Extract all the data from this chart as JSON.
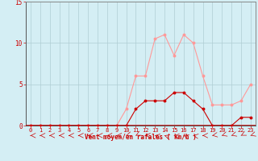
{
  "x": [
    0,
    1,
    2,
    3,
    4,
    5,
    6,
    7,
    8,
    9,
    10,
    11,
    12,
    13,
    14,
    15,
    16,
    17,
    18,
    19,
    20,
    21,
    22,
    23
  ],
  "y_moyen": [
    0,
    0,
    0,
    0,
    0,
    0,
    0,
    0,
    0,
    0,
    0,
    2,
    3,
    3,
    3,
    4,
    4,
    3,
    2,
    0,
    0,
    0,
    1,
    1
  ],
  "y_rafales": [
    0,
    0,
    0,
    0,
    0,
    0,
    0,
    0,
    0,
    0,
    2,
    6,
    6,
    10.5,
    11,
    8.5,
    11,
    10,
    6,
    2.5,
    2.5,
    2.5,
    3,
    5
  ],
  "xlabel": "Vent moyen/en rafales ( km/h )",
  "ylim": [
    0,
    15
  ],
  "xlim": [
    -0.5,
    23.5
  ],
  "yticks": [
    0,
    5,
    10,
    15
  ],
  "xticks": [
    0,
    1,
    2,
    3,
    4,
    5,
    6,
    7,
    8,
    9,
    10,
    11,
    12,
    13,
    14,
    15,
    16,
    17,
    18,
    19,
    20,
    21,
    22,
    23
  ],
  "color_moyen": "#cc0000",
  "color_rafales": "#ff9999",
  "bg_color": "#d4eef4",
  "grid_color": "#b0cdd4",
  "label_color": "#cc0000",
  "tick_color": "#cc0000",
  "spine_color": "#888888"
}
